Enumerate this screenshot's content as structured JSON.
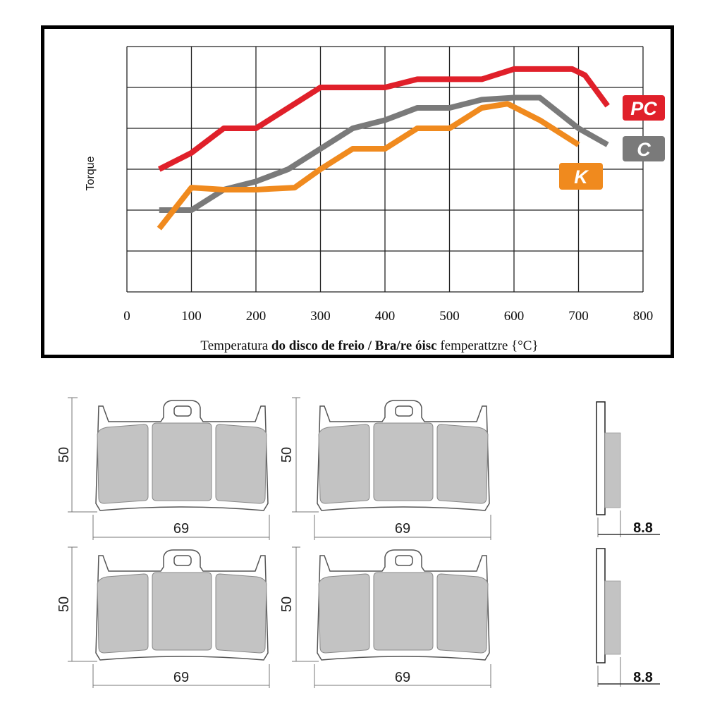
{
  "chart_data": {
    "type": "line",
    "ylabel": "Torque",
    "xlabel_parts": [
      {
        "text": "Temperatura ",
        "bold": false
      },
      {
        "text": "do disco de freio / Bra/re óisc",
        "bold": true
      },
      {
        "text": " femperattzre {°C}",
        "bold": false
      }
    ],
    "xlim": [
      0,
      800
    ],
    "x_ticks": [
      "0",
      "100",
      "200",
      "300",
      "400",
      "500",
      "600",
      "700",
      "800"
    ],
    "ylim": [
      0,
      6
    ],
    "grid": true,
    "series": [
      {
        "name": "PC",
        "color": "#e0202a",
        "points": [
          [
            50,
            3.0
          ],
          [
            100,
            3.4
          ],
          [
            150,
            4.0
          ],
          [
            200,
            4.0
          ],
          [
            250,
            4.5
          ],
          [
            300,
            5.0
          ],
          [
            350,
            5.0
          ],
          [
            400,
            5.0
          ],
          [
            450,
            5.2
          ],
          [
            500,
            5.2
          ],
          [
            550,
            5.2
          ],
          [
            600,
            5.45
          ],
          [
            650,
            5.45
          ],
          [
            690,
            5.45
          ],
          [
            710,
            5.3
          ],
          [
            745,
            4.55
          ]
        ]
      },
      {
        "name": "C",
        "color": "#7a7a7a",
        "points": [
          [
            50,
            2.0
          ],
          [
            100,
            2.0
          ],
          [
            150,
            2.5
          ],
          [
            200,
            2.7
          ],
          [
            250,
            3.0
          ],
          [
            300,
            3.5
          ],
          [
            350,
            4.0
          ],
          [
            400,
            4.2
          ],
          [
            450,
            4.5
          ],
          [
            500,
            4.5
          ],
          [
            550,
            4.7
          ],
          [
            600,
            4.75
          ],
          [
            640,
            4.75
          ],
          [
            700,
            4.0
          ],
          [
            745,
            3.6
          ]
        ]
      },
      {
        "name": "K",
        "color": "#f08a1e",
        "points": [
          [
            50,
            1.55
          ],
          [
            100,
            2.55
          ],
          [
            150,
            2.5
          ],
          [
            200,
            2.5
          ],
          [
            260,
            2.55
          ],
          [
            300,
            3.0
          ],
          [
            350,
            3.5
          ],
          [
            400,
            3.5
          ],
          [
            450,
            4.0
          ],
          [
            500,
            4.0
          ],
          [
            550,
            4.5
          ],
          [
            590,
            4.6
          ],
          [
            640,
            4.2
          ],
          [
            700,
            3.6
          ]
        ]
      }
    ]
  },
  "pads": {
    "width_label": "69",
    "height_label": "50",
    "thickness_label": "8.8"
  }
}
